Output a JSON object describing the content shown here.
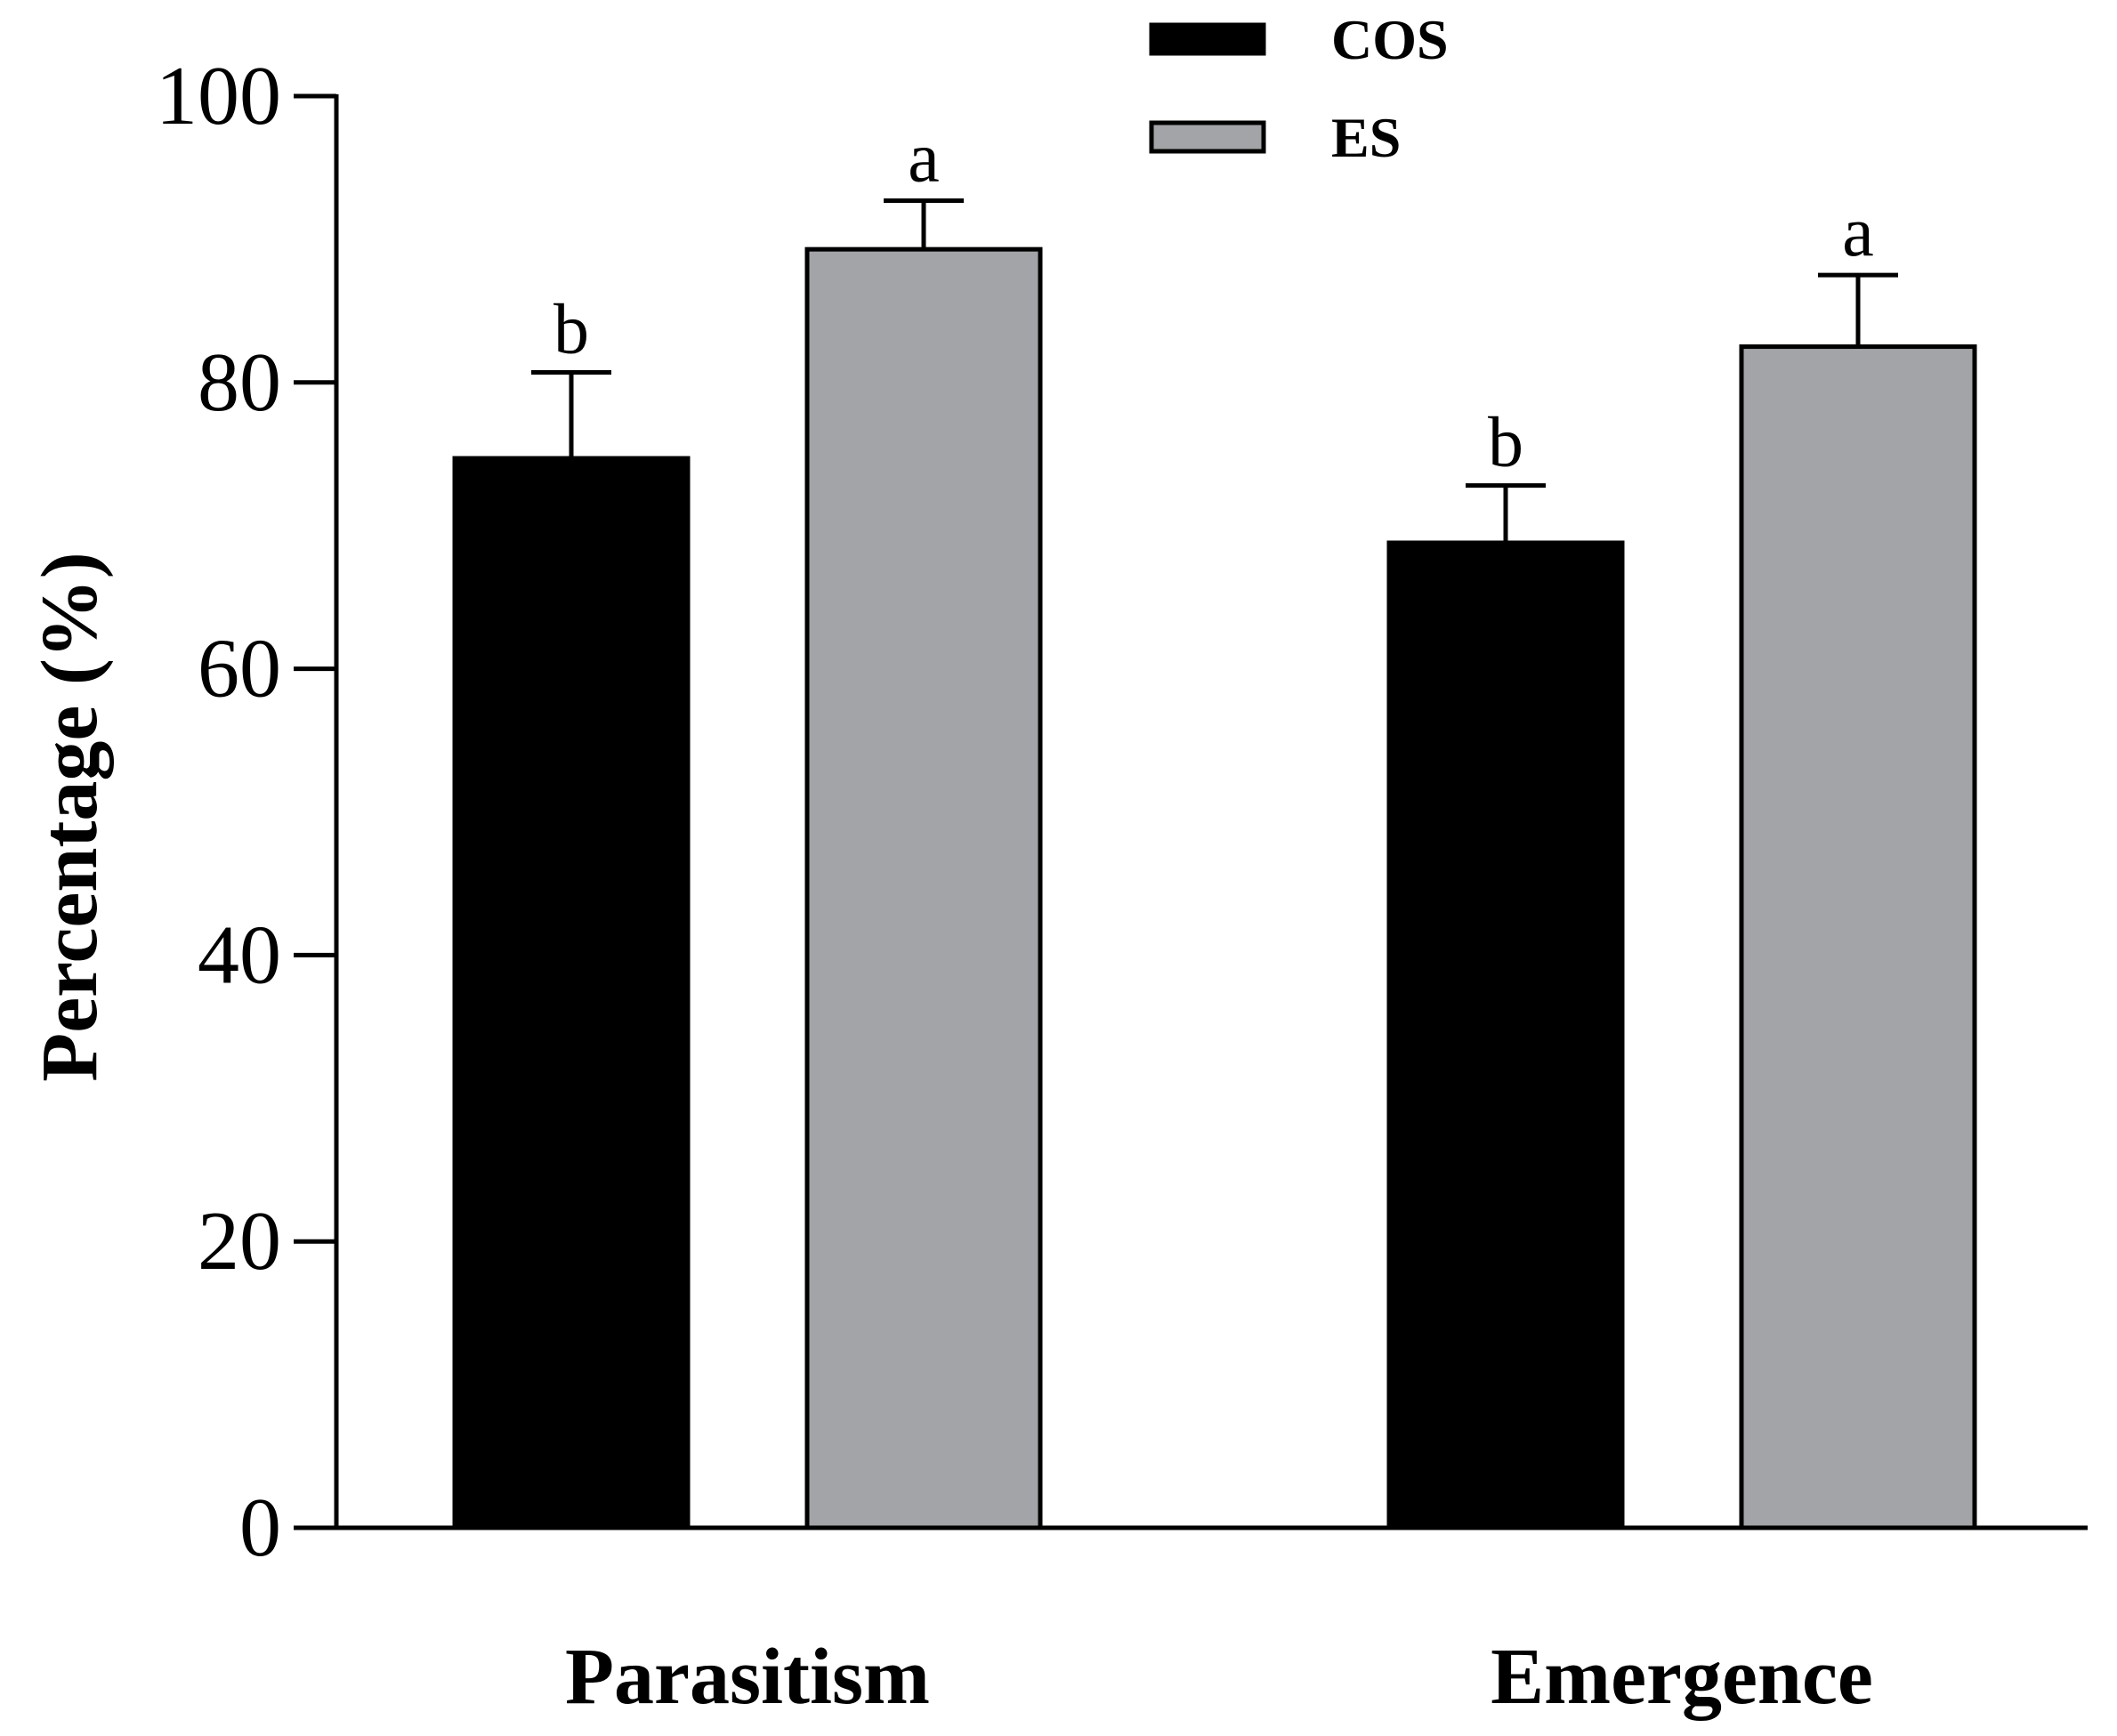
{
  "chart_data": {
    "type": "bar",
    "title": "",
    "xlabel": "",
    "ylabel": "Percentage (%)",
    "ylim": [
      0,
      100
    ],
    "yticks": [
      0,
      20,
      40,
      60,
      80,
      100
    ],
    "categories": [
      "Parasitism",
      "Emergence"
    ],
    "series": [
      {
        "name": "COS",
        "color": "#000000",
        "values": [
          74.7,
          68.8
        ],
        "errors": [
          6.0,
          4.0
        ],
        "letters": [
          "b",
          "b"
        ]
      },
      {
        "name": "ES",
        "color": "#a3a4a8",
        "values": [
          89.3,
          82.5
        ],
        "errors": [
          3.4,
          5.0
        ],
        "letters": [
          "a",
          "a"
        ]
      }
    ],
    "legend": {
      "position": "top-center"
    }
  }
}
